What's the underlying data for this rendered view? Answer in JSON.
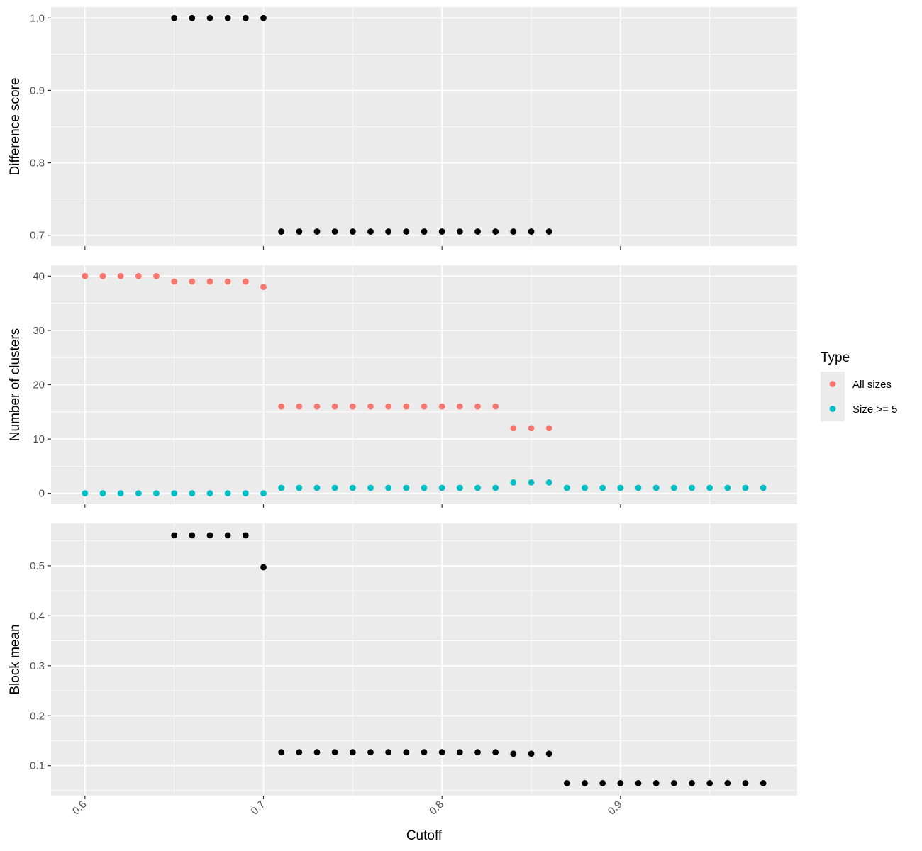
{
  "chart_data": [
    {
      "type": "scatter",
      "ylabel": "Difference score",
      "xlabel": "",
      "xlim": [
        0.581,
        0.999
      ],
      "ylim": [
        0.685,
        1.015
      ],
      "yticks": [
        0.7,
        0.8,
        0.9,
        1.0
      ],
      "ytick_labels": [
        "0.7",
        "0.8",
        "0.9",
        "1.0"
      ],
      "grid": true,
      "series": [
        {
          "color": "#000000",
          "points": [
            [
              0.65,
              1.0
            ],
            [
              0.66,
              1.0
            ],
            [
              0.67,
              1.0
            ],
            [
              0.68,
              1.0
            ],
            [
              0.69,
              1.0
            ],
            [
              0.7,
              1.0
            ],
            [
              0.71,
              0.705
            ],
            [
              0.72,
              0.705
            ],
            [
              0.73,
              0.705
            ],
            [
              0.74,
              0.705
            ],
            [
              0.75,
              0.705
            ],
            [
              0.76,
              0.705
            ],
            [
              0.77,
              0.705
            ],
            [
              0.78,
              0.705
            ],
            [
              0.79,
              0.705
            ],
            [
              0.8,
              0.705
            ],
            [
              0.81,
              0.705
            ],
            [
              0.82,
              0.705
            ],
            [
              0.83,
              0.705
            ],
            [
              0.84,
              0.705
            ],
            [
              0.85,
              0.705
            ],
            [
              0.86,
              0.705
            ]
          ]
        }
      ]
    },
    {
      "type": "scatter",
      "ylabel": "Number of clusters",
      "xlabel": "",
      "xlim": [
        0.581,
        0.999
      ],
      "ylim": [
        -2,
        42
      ],
      "yticks": [
        0,
        10,
        20,
        30,
        40
      ],
      "ytick_labels": [
        "0",
        "10",
        "20",
        "30",
        "40"
      ],
      "grid": true,
      "legend": {
        "title": "Type",
        "position": "right",
        "entries": [
          "All sizes",
          "Size >= 5"
        ]
      },
      "series": [
        {
          "name": "All sizes",
          "color": "#f8766d",
          "points": [
            [
              0.6,
              40
            ],
            [
              0.61,
              40
            ],
            [
              0.62,
              40
            ],
            [
              0.63,
              40
            ],
            [
              0.64,
              40
            ],
            [
              0.65,
              39
            ],
            [
              0.66,
              39
            ],
            [
              0.67,
              39
            ],
            [
              0.68,
              39
            ],
            [
              0.69,
              39
            ],
            [
              0.7,
              38
            ],
            [
              0.71,
              16
            ],
            [
              0.72,
              16
            ],
            [
              0.73,
              16
            ],
            [
              0.74,
              16
            ],
            [
              0.75,
              16
            ],
            [
              0.76,
              16
            ],
            [
              0.77,
              16
            ],
            [
              0.78,
              16
            ],
            [
              0.79,
              16
            ],
            [
              0.8,
              16
            ],
            [
              0.81,
              16
            ],
            [
              0.82,
              16
            ],
            [
              0.83,
              16
            ],
            [
              0.84,
              12
            ],
            [
              0.85,
              12
            ],
            [
              0.86,
              12
            ]
          ]
        },
        {
          "name": "Size >= 5",
          "color": "#00bfc4",
          "points": [
            [
              0.6,
              0
            ],
            [
              0.61,
              0
            ],
            [
              0.62,
              0
            ],
            [
              0.63,
              0
            ],
            [
              0.64,
              0
            ],
            [
              0.65,
              0
            ],
            [
              0.66,
              0
            ],
            [
              0.67,
              0
            ],
            [
              0.68,
              0
            ],
            [
              0.69,
              0
            ],
            [
              0.7,
              0
            ],
            [
              0.71,
              1
            ],
            [
              0.72,
              1
            ],
            [
              0.73,
              1
            ],
            [
              0.74,
              1
            ],
            [
              0.75,
              1
            ],
            [
              0.76,
              1
            ],
            [
              0.77,
              1
            ],
            [
              0.78,
              1
            ],
            [
              0.79,
              1
            ],
            [
              0.8,
              1
            ],
            [
              0.81,
              1
            ],
            [
              0.82,
              1
            ],
            [
              0.83,
              1
            ],
            [
              0.84,
              2
            ],
            [
              0.85,
              2
            ],
            [
              0.86,
              2
            ],
            [
              0.87,
              1
            ],
            [
              0.88,
              1
            ],
            [
              0.89,
              1
            ],
            [
              0.9,
              1
            ],
            [
              0.91,
              1
            ],
            [
              0.92,
              1
            ],
            [
              0.93,
              1
            ],
            [
              0.94,
              1
            ],
            [
              0.95,
              1
            ],
            [
              0.96,
              1
            ],
            [
              0.97,
              1
            ],
            [
              0.98,
              1
            ]
          ]
        }
      ]
    },
    {
      "type": "scatter",
      "ylabel": "Block mean",
      "xlabel": "Cutoff",
      "xlim": [
        0.581,
        0.999
      ],
      "ylim": [
        0.04,
        0.585
      ],
      "yticks": [
        0.1,
        0.2,
        0.3,
        0.4,
        0.5
      ],
      "ytick_labels": [
        "0.1",
        "0.2",
        "0.3",
        "0.4",
        "0.5"
      ],
      "xticks": [
        0.6,
        0.7,
        0.8,
        0.9
      ],
      "xtick_labels": [
        "0.6",
        "0.7",
        "0.8",
        "0.9"
      ],
      "grid": true,
      "series": [
        {
          "color": "#000000",
          "points": [
            [
              0.65,
              0.561
            ],
            [
              0.66,
              0.561
            ],
            [
              0.67,
              0.561
            ],
            [
              0.68,
              0.561
            ],
            [
              0.69,
              0.561
            ],
            [
              0.7,
              0.497
            ],
            [
              0.71,
              0.127
            ],
            [
              0.72,
              0.127
            ],
            [
              0.73,
              0.127
            ],
            [
              0.74,
              0.127
            ],
            [
              0.75,
              0.127
            ],
            [
              0.76,
              0.127
            ],
            [
              0.77,
              0.127
            ],
            [
              0.78,
              0.127
            ],
            [
              0.79,
              0.127
            ],
            [
              0.8,
              0.127
            ],
            [
              0.81,
              0.127
            ],
            [
              0.82,
              0.127
            ],
            [
              0.83,
              0.127
            ],
            [
              0.84,
              0.124
            ],
            [
              0.85,
              0.124
            ],
            [
              0.86,
              0.124
            ],
            [
              0.87,
              0.065
            ],
            [
              0.88,
              0.065
            ],
            [
              0.89,
              0.065
            ],
            [
              0.9,
              0.065
            ],
            [
              0.91,
              0.065
            ],
            [
              0.92,
              0.065
            ],
            [
              0.93,
              0.065
            ],
            [
              0.94,
              0.065
            ],
            [
              0.95,
              0.065
            ],
            [
              0.96,
              0.065
            ],
            [
              0.97,
              0.065
            ],
            [
              0.98,
              0.065
            ]
          ]
        }
      ]
    }
  ]
}
